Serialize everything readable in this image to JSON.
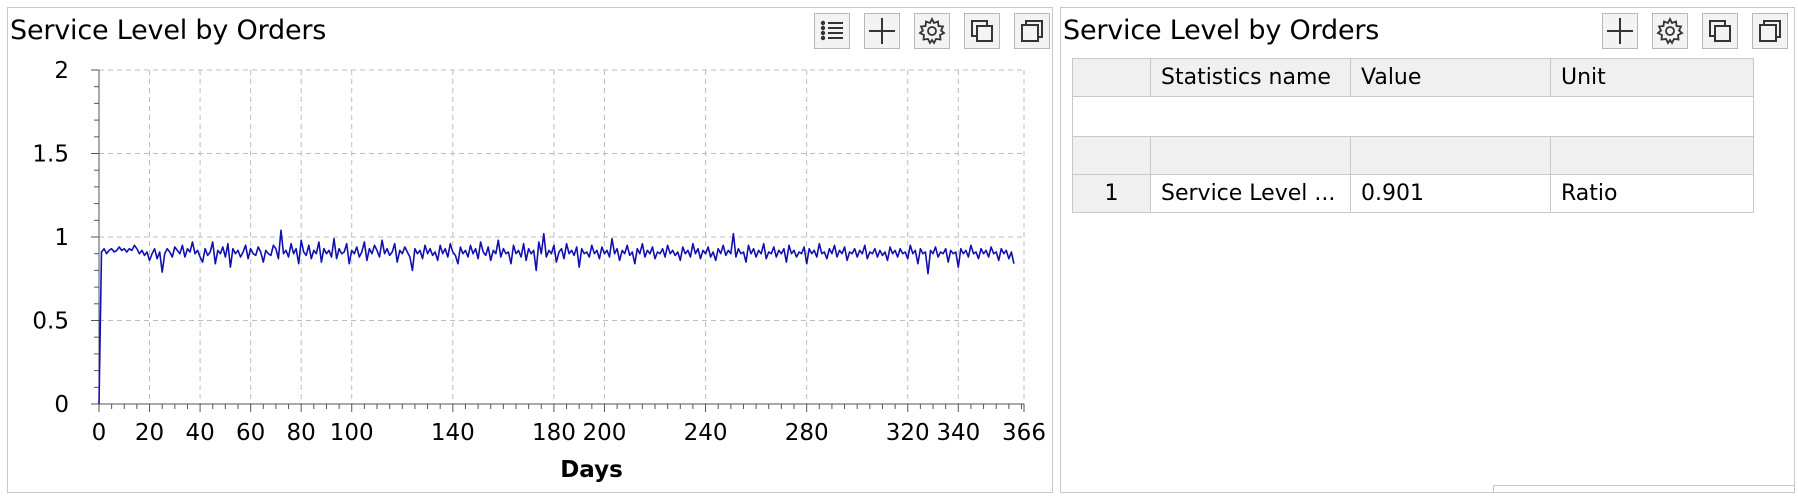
{
  "left_panel": {
    "title": "Service Level by Orders",
    "toolbar": [
      {
        "name": "legend-list-icon"
      },
      {
        "name": "add-plus-icon"
      },
      {
        "name": "settings-gear-icon"
      },
      {
        "name": "copy-icon"
      },
      {
        "name": "maximize-icon"
      }
    ]
  },
  "right_panel": {
    "title": "Service Level by Orders",
    "toolbar": [
      {
        "name": "add-plus-icon"
      },
      {
        "name": "settings-gear-icon"
      },
      {
        "name": "copy-icon"
      },
      {
        "name": "maximize-icon"
      }
    ],
    "table": {
      "columns": [
        "Statistics name",
        "Value",
        "Unit"
      ],
      "rows": [
        {
          "index": "1",
          "name": "Service Level by Orders (Average)",
          "name_display": "Service Level ...",
          "value": "0.901",
          "unit": "Ratio"
        }
      ]
    }
  },
  "chart_data": {
    "type": "line",
    "title": "",
    "xlabel": "Days",
    "ylabel": "",
    "xlim": [
      0,
      366
    ],
    "ylim": [
      0,
      2
    ],
    "x_ticks": [
      0,
      20,
      40,
      60,
      80,
      100,
      140,
      180,
      200,
      240,
      280,
      320,
      340,
      366
    ],
    "y_ticks": [
      0,
      0.5,
      1,
      1.5,
      2
    ],
    "y_tick_labels": [
      "0",
      "0.5",
      "1",
      "1.5",
      "2"
    ],
    "grid": true,
    "line_color": "#1010b0",
    "series": [
      {
        "start": [
          0,
          0
        ],
        "x_step": 1,
        "values": [
          0.91,
          0.93,
          0.9,
          0.92,
          0.93,
          0.91,
          0.92,
          0.94,
          0.92,
          0.93,
          0.91,
          0.93,
          0.92,
          0.95,
          0.93,
          0.9,
          0.92,
          0.89,
          0.91,
          0.86,
          0.9,
          0.93,
          0.87,
          0.91,
          0.79,
          0.9,
          0.93,
          0.91,
          0.88,
          0.94,
          0.92,
          0.9,
          0.95,
          0.88,
          0.93,
          0.91,
          0.97,
          0.9,
          0.92,
          0.88,
          0.85,
          0.93,
          0.89,
          0.91,
          0.97,
          0.84,
          0.92,
          0.9,
          0.94,
          0.88,
          0.96,
          0.82,
          0.93,
          0.9,
          0.92,
          0.88,
          0.91,
          0.95,
          0.87,
          0.93,
          0.9,
          0.89,
          0.94,
          0.91,
          0.85,
          0.92,
          0.9,
          0.89,
          0.95,
          0.93,
          0.87,
          1.04,
          0.9,
          0.92,
          0.88,
          0.96,
          0.9,
          0.93,
          0.84,
          0.98,
          0.91,
          0.89,
          0.95,
          0.87,
          0.92,
          0.9,
          0.97,
          0.85,
          0.93,
          0.9,
          0.92,
          0.88,
          0.99,
          0.87,
          0.93,
          0.9,
          0.91,
          0.96,
          0.84,
          0.92,
          0.9,
          0.94,
          0.88,
          0.91,
          0.97,
          0.86,
          0.93,
          0.9,
          0.95,
          0.92,
          0.88,
          0.98,
          0.9,
          0.93,
          0.89,
          0.91,
          0.96,
          0.85,
          0.92,
          0.9,
          0.94,
          0.91,
          0.88,
          0.8,
          0.93,
          0.9,
          0.92,
          0.87,
          0.95,
          0.9,
          0.93,
          0.89,
          0.91,
          0.86,
          0.95,
          0.9,
          0.93,
          0.88,
          0.96,
          0.91,
          0.89,
          0.84,
          0.94,
          0.9,
          0.92,
          0.88,
          0.95,
          0.9,
          0.93,
          0.87,
          0.97,
          0.91,
          0.89,
          0.94,
          0.86,
          0.92,
          0.9,
          0.98,
          0.88,
          0.93,
          0.9,
          0.91,
          0.84,
          0.95,
          0.9,
          0.92,
          0.88,
          0.96,
          0.86,
          0.93,
          0.9,
          0.92,
          0.8,
          0.97,
          0.9,
          1.02,
          0.88,
          0.92,
          0.9,
          0.95,
          0.85,
          0.91,
          0.93,
          0.87,
          0.96,
          0.9,
          0.92,
          0.89,
          0.94,
          0.82,
          0.93,
          0.9,
          0.91,
          0.88,
          0.95,
          0.9,
          0.92,
          0.87,
          0.94,
          0.9,
          0.92,
          0.88,
          0.99,
          0.9,
          0.93,
          0.86,
          0.92,
          0.9,
          0.95,
          0.89,
          0.91,
          0.84,
          0.93,
          0.9,
          0.96,
          0.88,
          0.92,
          0.9,
          0.94,
          0.87,
          0.91,
          0.9,
          0.93,
          0.88,
          0.95,
          0.9,
          0.92,
          0.89,
          0.91,
          0.86,
          0.94,
          0.9,
          0.92,
          0.88,
          0.96,
          0.9,
          0.93,
          0.87,
          0.92,
          0.9,
          0.94,
          0.88,
          0.91,
          0.86,
          0.93,
          0.9,
          0.95,
          0.89,
          0.92,
          0.9,
          1.02,
          0.88,
          0.93,
          0.9,
          0.91,
          0.85,
          0.95,
          0.9,
          0.93,
          0.88,
          0.92,
          0.9,
          0.96,
          0.87,
          0.91,
          0.9,
          0.94,
          0.88,
          0.92,
          0.9,
          0.93,
          0.85,
          0.95,
          0.9,
          0.92,
          0.88,
          0.91,
          0.9,
          0.94,
          0.84,
          0.93,
          0.9,
          0.92,
          0.88,
          0.96,
          0.9,
          0.91,
          0.87,
          0.93,
          0.9,
          0.95,
          0.88,
          0.92,
          0.9,
          0.94,
          0.86,
          0.91,
          0.9,
          0.93,
          0.88,
          0.92,
          0.9,
          0.95,
          0.87,
          0.91,
          0.9,
          0.93,
          0.88,
          0.92,
          0.89,
          0.91,
          0.86,
          0.94,
          0.9,
          0.92,
          0.88,
          0.93,
          0.9,
          0.91,
          0.87,
          0.95,
          0.9,
          0.92,
          0.84,
          0.93,
          0.9,
          0.91,
          0.78,
          0.92,
          0.9,
          0.94,
          0.88,
          0.91,
          0.9,
          0.93,
          0.85,
          0.92,
          0.9,
          0.91,
          0.82,
          0.93,
          0.9,
          0.92,
          0.88,
          0.95,
          0.9,
          0.91,
          0.87,
          0.93,
          0.9,
          0.92,
          0.88,
          0.94,
          0.9,
          0.91,
          0.86,
          0.93,
          0.9,
          0.92,
          0.87,
          0.91,
          0.84
        ]
      }
    ]
  }
}
